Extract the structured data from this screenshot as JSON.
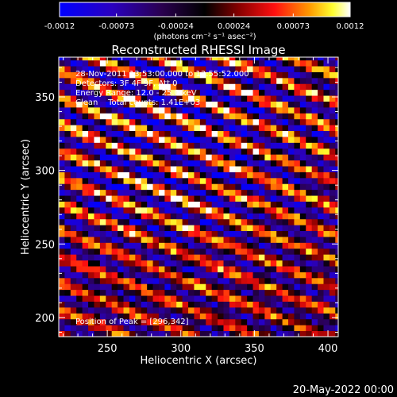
{
  "chart_data": {
    "type": "heatmap",
    "title": "Reconstructed RHESSI Image",
    "xlabel": "Heliocentric X (arcsec)",
    "ylabel": "Heliocentric Y (arcsec)",
    "xlim": [
      217,
      407
    ],
    "ylim": [
      187,
      377
    ],
    "x_ticks": [
      250,
      300,
      350,
      400
    ],
    "y_ticks": [
      200,
      250,
      300,
      350
    ],
    "grid": false,
    "colorbar": {
      "min": -0.0012,
      "max": 0.0012,
      "tick_values": [
        -0.0012,
        -0.00073,
        -0.00024,
        0.00024,
        0.00073,
        0.0012
      ],
      "tick_labels": [
        "-0.0012",
        "-0.00073",
        "-0.00024",
        "0.00024",
        "0.00073",
        "0.0012"
      ],
      "units_label": "(photons cm⁻² s⁻¹ asec⁻²)"
    },
    "annotations": [
      "28-Nov-2011 13:53:00.000 to 13:55:52.000",
      "Detectors: 3F 4F 9F, Att 0",
      "Energy Range: 12.0 - 25.0 keV",
      "Clean    Total counts: 1.41E+03"
    ],
    "peak_label": "Position of Peak = [296,342]",
    "peak_position": [
      296,
      342
    ],
    "pixel_size_arcsec": 4,
    "pattern": {
      "description_values": "diagonal fringe pattern, stripes rising toward the upper-left",
      "stripe_period_arcsec": 18,
      "stripe_slope": 0.4
    }
  },
  "footer": {
    "date": "20-May-2022 00:00"
  }
}
